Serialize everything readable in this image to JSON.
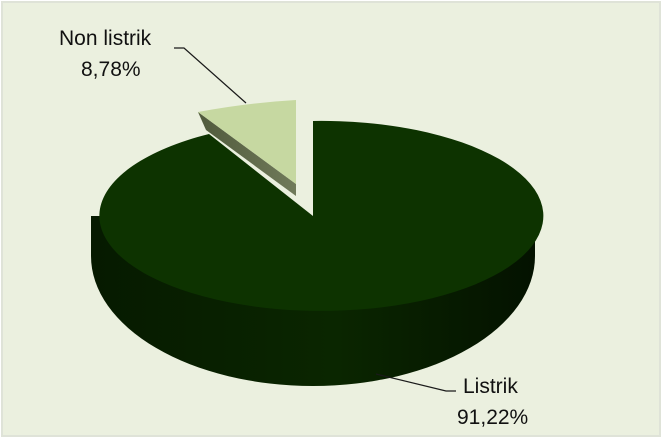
{
  "chart_data": {
    "type": "pie",
    "style": "3d-exploded",
    "slices": [
      {
        "name": "Listrik",
        "value": 91.22,
        "label": "91,22%",
        "color": "#0d3300"
      },
      {
        "name": "Non listrik",
        "value": 8.78,
        "label": "8,78%",
        "color": "#c6d8a1"
      }
    ],
    "background_color": "#ebf0df",
    "border_color": "#dfe3d8"
  }
}
